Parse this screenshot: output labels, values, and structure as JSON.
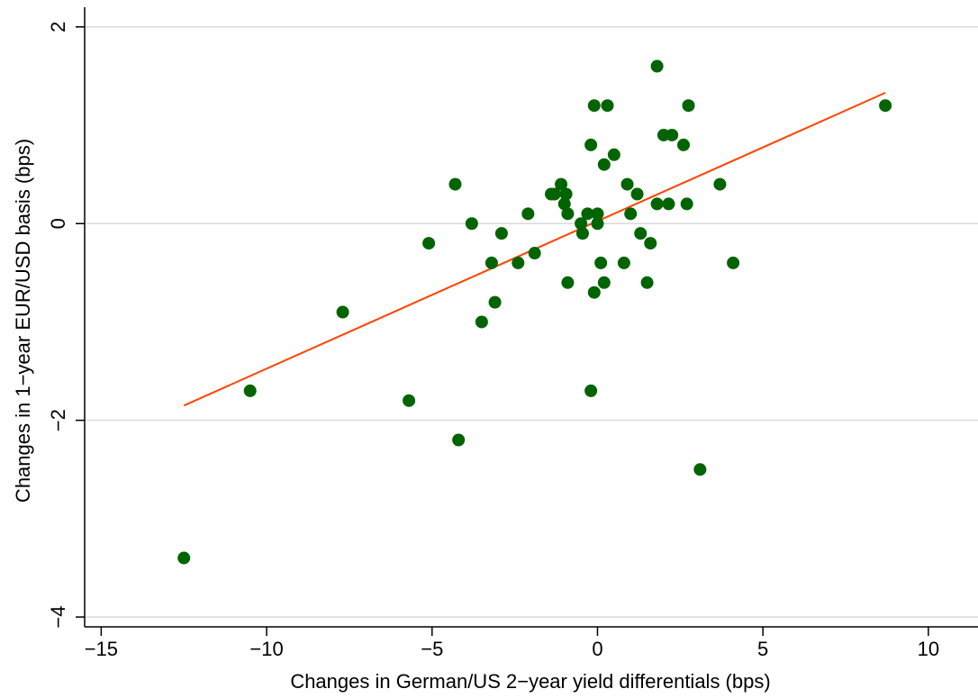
{
  "chart_data": {
    "type": "scatter",
    "title": "",
    "xlabel": "Changes in German/US 2−year yield differentials (bps)",
    "ylabel": "Changes in 1−year EUR/USD basis (bps)",
    "xlim": [
      -15.5,
      11.5
    ],
    "ylim": [
      -4.1,
      2.2
    ],
    "xticks": [
      -15,
      -10,
      -5,
      0,
      5,
      10
    ],
    "yticks": [
      -4,
      -2,
      0,
      2
    ],
    "xtick_labels": [
      "−15",
      "−10",
      "−5",
      "0",
      "5",
      "10"
    ],
    "ytick_labels": [
      "−4",
      "−2",
      "0",
      "2"
    ],
    "grid": "horizontal",
    "colors": {
      "points": "#006400",
      "fit_line": "#ff4500",
      "grid": "#d9d9d9"
    },
    "series": [
      {
        "type": "scatter",
        "points": [
          [
            -12.5,
            -3.4
          ],
          [
            -10.5,
            -1.7
          ],
          [
            -7.7,
            -0.9
          ],
          [
            -5.7,
            -1.8
          ],
          [
            -5.1,
            -0.2
          ],
          [
            -4.3,
            0.4
          ],
          [
            -4.2,
            -2.2
          ],
          [
            -3.8,
            0.0
          ],
          [
            -3.5,
            -1.0
          ],
          [
            -3.2,
            -0.4
          ],
          [
            -3.1,
            -0.8
          ],
          [
            -2.9,
            -0.1
          ],
          [
            -2.4,
            -0.4
          ],
          [
            -2.1,
            0.1
          ],
          [
            -1.9,
            -0.3
          ],
          [
            -1.4,
            0.3
          ],
          [
            -1.3,
            0.3
          ],
          [
            -1.1,
            0.4
          ],
          [
            -1.0,
            0.2
          ],
          [
            -0.95,
            0.3
          ],
          [
            -0.9,
            0.1
          ],
          [
            -0.9,
            -0.6
          ],
          [
            -0.5,
            0.0
          ],
          [
            -0.45,
            -0.1
          ],
          [
            -0.3,
            0.1
          ],
          [
            -0.2,
            0.8
          ],
          [
            -0.2,
            -1.7
          ],
          [
            -0.1,
            1.2
          ],
          [
            -0.1,
            -0.7
          ],
          [
            0.0,
            0.1
          ],
          [
            0.0,
            0.0
          ],
          [
            0.1,
            -0.4
          ],
          [
            0.2,
            0.6
          ],
          [
            0.2,
            -0.6
          ],
          [
            0.3,
            1.2
          ],
          [
            0.5,
            0.7
          ],
          [
            0.8,
            -0.4
          ],
          [
            0.9,
            0.4
          ],
          [
            1.0,
            0.1
          ],
          [
            1.2,
            0.3
          ],
          [
            1.3,
            -0.1
          ],
          [
            1.5,
            -0.6
          ],
          [
            1.6,
            -0.2
          ],
          [
            1.8,
            1.6
          ],
          [
            1.8,
            0.2
          ],
          [
            2.0,
            0.9
          ],
          [
            2.15,
            0.2
          ],
          [
            2.25,
            0.9
          ],
          [
            2.6,
            0.8
          ],
          [
            2.7,
            0.2
          ],
          [
            2.75,
            1.2
          ],
          [
            3.1,
            -2.5
          ],
          [
            3.7,
            0.4
          ],
          [
            4.1,
            -0.4
          ],
          [
            8.7,
            1.2
          ]
        ]
      },
      {
        "type": "line",
        "points": [
          [
            -12.5,
            -1.85
          ],
          [
            8.7,
            1.33
          ]
        ]
      }
    ]
  }
}
